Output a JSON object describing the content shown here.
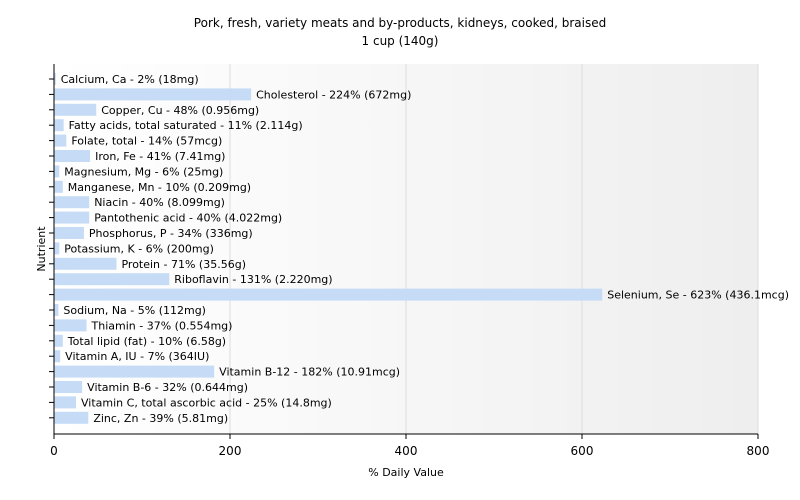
{
  "chart_data": {
    "type": "bar",
    "orientation": "horizontal",
    "title": "Pork, fresh, variety meats and by-products, kidneys, cooked, braised",
    "subtitle": "1 cup (140g)",
    "xlabel": "% Daily Value",
    "ylabel": "Nutrient",
    "xlim": [
      0,
      800
    ],
    "xticks": [
      0,
      200,
      400,
      600,
      800
    ],
    "xtick_labels": [
      "0",
      "200",
      "400",
      "600",
      "800"
    ],
    "grid": true,
    "bar_color": "#c6dcf6",
    "categories": [
      "Calcium, Ca",
      "Cholesterol",
      "Copper, Cu",
      "Fatty acids, total saturated",
      "Folate, total",
      "Iron, Fe",
      "Magnesium, Mg",
      "Manganese, Mn",
      "Niacin",
      "Pantothenic acid",
      "Phosphorus, P",
      "Potassium, K",
      "Protein",
      "Riboflavin",
      "Selenium, Se",
      "Sodium, Na",
      "Thiamin",
      "Total lipid (fat)",
      "Vitamin A, IU",
      "Vitamin B-12",
      "Vitamin B-6",
      "Vitamin C, total ascorbic acid",
      "Zinc, Zn"
    ],
    "values": [
      2,
      224,
      48,
      11,
      14,
      41,
      6,
      10,
      40,
      40,
      34,
      6,
      71,
      131,
      623,
      5,
      37,
      10,
      7,
      182,
      32,
      25,
      39
    ],
    "labels": [
      "Calcium, Ca - 2% (18mg)",
      "Cholesterol - 224% (672mg)",
      "Copper, Cu - 48% (0.956mg)",
      "Fatty acids, total saturated - 11% (2.114g)",
      "Folate, total - 14% (57mcg)",
      "Iron, Fe - 41% (7.41mg)",
      "Magnesium, Mg - 6% (25mg)",
      "Manganese, Mn - 10% (0.209mg)",
      "Niacin - 40% (8.099mg)",
      "Pantothenic acid - 40% (4.022mg)",
      "Phosphorus, P - 34% (336mg)",
      "Potassium, K - 6% (200mg)",
      "Protein - 71% (35.56g)",
      "Riboflavin - 131% (2.220mg)",
      "Selenium, Se - 623% (436.1mcg)",
      "Sodium, Na - 5% (112mg)",
      "Thiamin - 37% (0.554mg)",
      "Total lipid (fat) - 10% (6.58g)",
      "Vitamin A, IU - 7% (364IU)",
      "Vitamin B-12 - 182% (10.91mcg)",
      "Vitamin B-6 - 32% (0.644mg)",
      "Vitamin C, total ascorbic acid - 25% (14.8mg)",
      "Zinc, Zn - 39% (5.81mg)"
    ]
  }
}
